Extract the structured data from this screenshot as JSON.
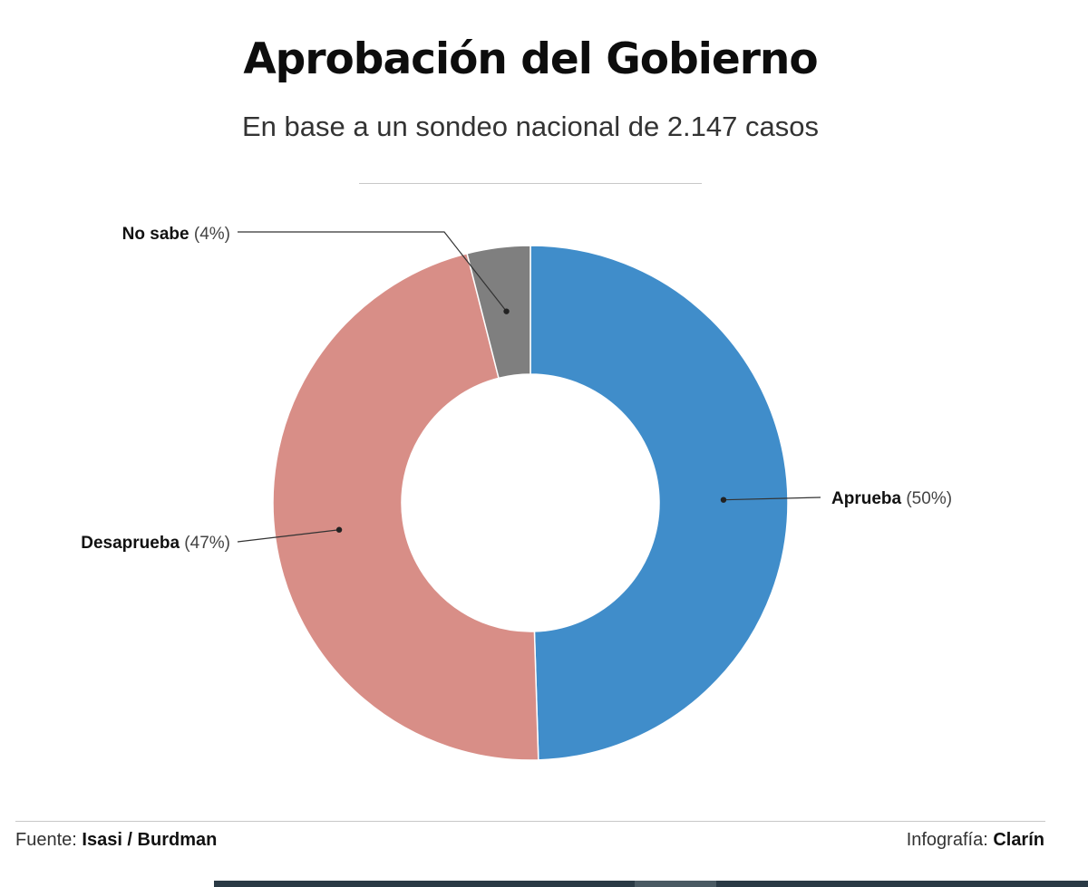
{
  "header": {
    "title": "Aprobación del Gobierno",
    "subtitle": "En base a un sondeo nacional de 2.147 casos"
  },
  "chart_data": {
    "type": "pie",
    "donut": true,
    "title": "Aprobación del Gobierno",
    "subtitle": "En base a un sondeo nacional de 2.147 casos",
    "slices": [
      {
        "label": "Aprueba",
        "value": 50,
        "value_text": "(50%)",
        "color": "#408dca"
      },
      {
        "label": "Desaprueba",
        "value": 47,
        "value_text": "(47%)",
        "color": "#d88e87"
      },
      {
        "label": "No sabe",
        "value": 4,
        "value_text": "(4%)",
        "color": "#7f7f7f"
      }
    ]
  },
  "footer": {
    "source_prefix": "Fuente:",
    "source": "Isasi / Burdman",
    "credit_prefix": "Infografía:",
    "credit": "Clarín"
  }
}
